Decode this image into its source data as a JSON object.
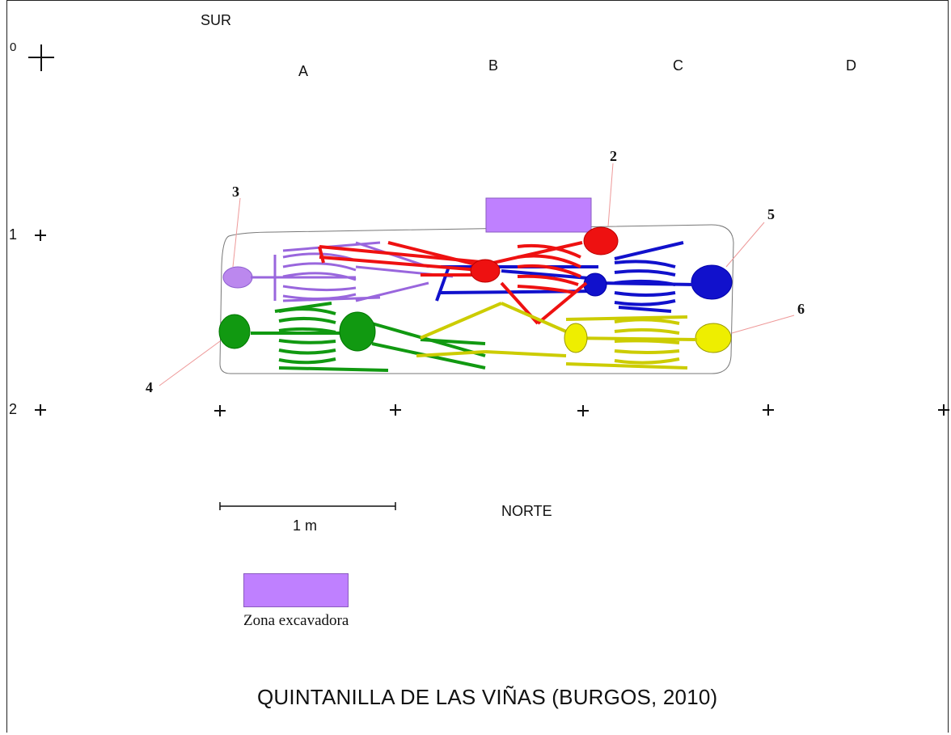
{
  "orientation": {
    "top": "SUR",
    "bottom": "NORTE"
  },
  "grid": {
    "row_labels": [
      "0",
      "1",
      "2"
    ],
    "column_labels": [
      "A",
      "B",
      "C",
      "D"
    ]
  },
  "burials": {
    "labels": [
      "2",
      "3",
      "4",
      "5",
      "6"
    ],
    "colors": {
      "2": "#ee1111",
      "3": "#bb88ee",
      "4": "#119911",
      "5": "#1111cc",
      "6": "#eeee00"
    }
  },
  "scale_bar": {
    "label": "1 m"
  },
  "legend": {
    "label": "Zona excavadora",
    "color": "#bf80ff"
  },
  "title": "QUINTANILLA DE LAS VIÑAS (BURGOS, 2010)"
}
